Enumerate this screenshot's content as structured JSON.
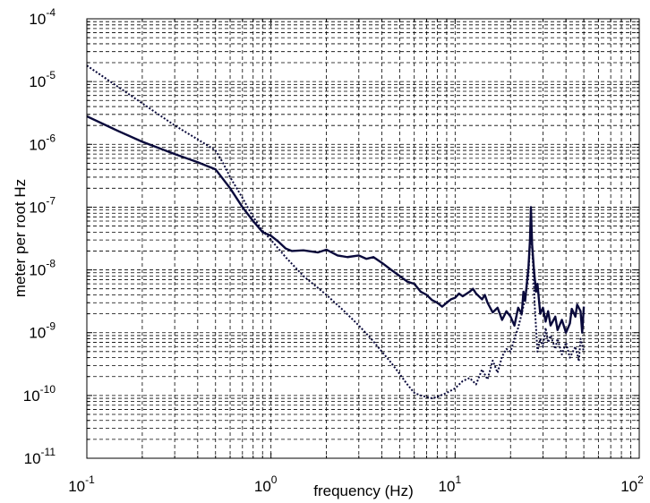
{
  "chart_data": {
    "type": "line",
    "xlabel": "frequency (Hz)",
    "ylabel": "meter per root Hz",
    "x_scale": "log",
    "y_scale": "log",
    "xlim": [
      0.1,
      100
    ],
    "ylim": [
      1e-11,
      0.0001
    ],
    "grid": true,
    "legend": "none",
    "x_ticks": [
      {
        "base": "10",
        "exp": "-1",
        "value": 0.1
      },
      {
        "base": "10",
        "exp": "0",
        "value": 1
      },
      {
        "base": "10",
        "exp": "1",
        "value": 10
      },
      {
        "base": "10",
        "exp": "2",
        "value": 100
      }
    ],
    "y_ticks": [
      {
        "base": "10",
        "exp": "-11",
        "value": 1e-11
      },
      {
        "base": "10",
        "exp": "-10",
        "value": 1e-10
      },
      {
        "base": "10",
        "exp": "-9",
        "value": 1e-09
      },
      {
        "base": "10",
        "exp": "-8",
        "value": 1e-08
      },
      {
        "base": "10",
        "exp": "-7",
        "value": 1e-07
      },
      {
        "base": "10",
        "exp": "-6",
        "value": 1e-06
      },
      {
        "base": "10",
        "exp": "-5",
        "value": 1e-05
      },
      {
        "base": "10",
        "exp": "-4",
        "value": 0.0001
      }
    ],
    "series": [
      {
        "style": "solid",
        "color": "#0a0a3c",
        "points": [
          [
            0.1,
            2.8e-06
          ],
          [
            0.15,
            1.6e-06
          ],
          [
            0.2,
            1.1e-06
          ],
          [
            0.3,
            7e-07
          ],
          [
            0.4,
            5.2e-07
          ],
          [
            0.5,
            4e-07
          ],
          [
            0.6,
            2e-07
          ],
          [
            0.7,
            1e-07
          ],
          [
            0.8,
            6e-08
          ],
          [
            0.9,
            4e-08
          ],
          [
            1.0,
            3.5e-08
          ],
          [
            1.1,
            2.8e-08
          ],
          [
            1.2,
            2.2e-08
          ],
          [
            1.3,
            2e-08
          ],
          [
            1.5,
            2.05e-08
          ],
          [
            1.8,
            1.9e-08
          ],
          [
            2.0,
            2.1e-08
          ],
          [
            2.3,
            1.7e-08
          ],
          [
            2.6,
            1.6e-08
          ],
          [
            3.0,
            1.7e-08
          ],
          [
            3.3,
            1.5e-08
          ],
          [
            3.6,
            1.6e-08
          ],
          [
            4.0,
            1.3e-08
          ],
          [
            4.5,
            1e-08
          ],
          [
            5.0,
            8e-09
          ],
          [
            5.5,
            6.5e-09
          ],
          [
            6.0,
            6e-09
          ],
          [
            6.5,
            4.5e-09
          ],
          [
            7.0,
            4e-09
          ],
          [
            7.5,
            3.3e-09
          ],
          [
            8.0,
            3e-09
          ],
          [
            8.5,
            2.6e-09
          ],
          [
            9.0,
            3e-09
          ],
          [
            9.5,
            3.4e-09
          ],
          [
            10,
            3.6e-09
          ],
          [
            10.5,
            4.2e-09
          ],
          [
            11,
            3.8e-09
          ],
          [
            12,
            4.5e-09
          ],
          [
            12.5,
            5e-09
          ],
          [
            13,
            4.2e-09
          ],
          [
            14,
            3.4e-09
          ],
          [
            14.5,
            4e-09
          ],
          [
            15,
            3e-09
          ],
          [
            16,
            2.1e-09
          ],
          [
            17,
            2.5e-09
          ],
          [
            18,
            1.6e-09
          ],
          [
            19,
            2.2e-09
          ],
          [
            20,
            1.8e-09
          ],
          [
            21,
            1.3e-09
          ],
          [
            22,
            2.5e-09
          ],
          [
            23,
            2e-09
          ],
          [
            23.5,
            4.5e-09
          ],
          [
            24,
            3.2e-09
          ],
          [
            24.5,
            6e-09
          ],
          [
            25,
            1.05e-08
          ],
          [
            25.5,
            3e-08
          ],
          [
            25.8,
            1e-07
          ],
          [
            26.2,
            2.5e-08
          ],
          [
            26.8,
            1e-08
          ],
          [
            27.5,
            4.5e-09
          ],
          [
            28,
            6e-09
          ],
          [
            29,
            2e-09
          ],
          [
            30,
            2.5e-09
          ],
          [
            31,
            1.5e-09
          ],
          [
            32,
            2.2e-09
          ],
          [
            33,
            1.3e-09
          ],
          [
            35,
            1.8e-09
          ],
          [
            36,
            1.1e-09
          ],
          [
            38,
            1.6e-09
          ],
          [
            40,
            1e-09
          ],
          [
            42,
            1.4e-09
          ],
          [
            43,
            2.4e-09
          ],
          [
            45,
            1.8e-09
          ],
          [
            46,
            2.8e-09
          ],
          [
            48,
            2.2e-09
          ],
          [
            49,
            1e-09
          ],
          [
            50,
            2.6e-09
          ]
        ]
      },
      {
        "style": "dotted",
        "color": "#0a0a3c",
        "points": [
          [
            0.1,
            1.8e-05
          ],
          [
            0.15,
            8e-06
          ],
          [
            0.2,
            4.5e-06
          ],
          [
            0.3,
            2e-06
          ],
          [
            0.4,
            1.2e-06
          ],
          [
            0.5,
            8e-07
          ],
          [
            0.55,
            5e-07
          ],
          [
            0.6,
            3e-07
          ],
          [
            0.7,
            1.4e-07
          ],
          [
            0.8,
            7e-08
          ],
          [
            0.9,
            4.2e-08
          ],
          [
            1.0,
            3e-08
          ],
          [
            1.2,
            1.6e-08
          ],
          [
            1.5,
            8e-09
          ],
          [
            2.0,
            4e-09
          ],
          [
            2.5,
            2.2e-09
          ],
          [
            3.0,
            1.3e-09
          ],
          [
            3.5,
            8e-10
          ],
          [
            4.0,
            5e-10
          ],
          [
            4.5,
            3.3e-10
          ],
          [
            5.0,
            2.2e-10
          ],
          [
            5.5,
            1.5e-10
          ],
          [
            6.0,
            1.1e-10
          ],
          [
            6.5,
            1e-10
          ],
          [
            7.0,
            9.5e-11
          ],
          [
            7.5,
            9e-11
          ],
          [
            8.0,
            9.5e-11
          ],
          [
            9.0,
            1.1e-10
          ],
          [
            10,
            1.3e-10
          ],
          [
            11,
            1.7e-10
          ],
          [
            12,
            1.9e-10
          ],
          [
            13,
            1.5e-10
          ],
          [
            14,
            2.6e-10
          ],
          [
            15,
            1.8e-10
          ],
          [
            16,
            3.6e-10
          ],
          [
            17,
            2.3e-10
          ],
          [
            18,
            4.2e-10
          ],
          [
            19,
            5.5e-10
          ],
          [
            20,
            5e-10
          ],
          [
            21,
            8e-10
          ],
          [
            22,
            1.2e-09
          ],
          [
            23,
            2e-09
          ],
          [
            24,
            3.5e-09
          ],
          [
            25,
            8e-09
          ],
          [
            25.8,
            5e-08
          ],
          [
            26.5,
            1.2e-08
          ],
          [
            27,
            3e-09
          ],
          [
            28,
            5e-10
          ],
          [
            29,
            8e-10
          ],
          [
            30,
            6e-10
          ],
          [
            31,
            1.2e-09
          ],
          [
            32,
            7e-10
          ],
          [
            33,
            9e-10
          ],
          [
            35,
            5.5e-10
          ],
          [
            36,
            8e-10
          ],
          [
            38,
            4.5e-10
          ],
          [
            40,
            7e-10
          ],
          [
            42,
            4e-10
          ],
          [
            45,
            6e-10
          ],
          [
            47,
            3.5e-10
          ],
          [
            48,
            8e-10
          ],
          [
            50,
            5e-10
          ]
        ]
      }
    ]
  }
}
